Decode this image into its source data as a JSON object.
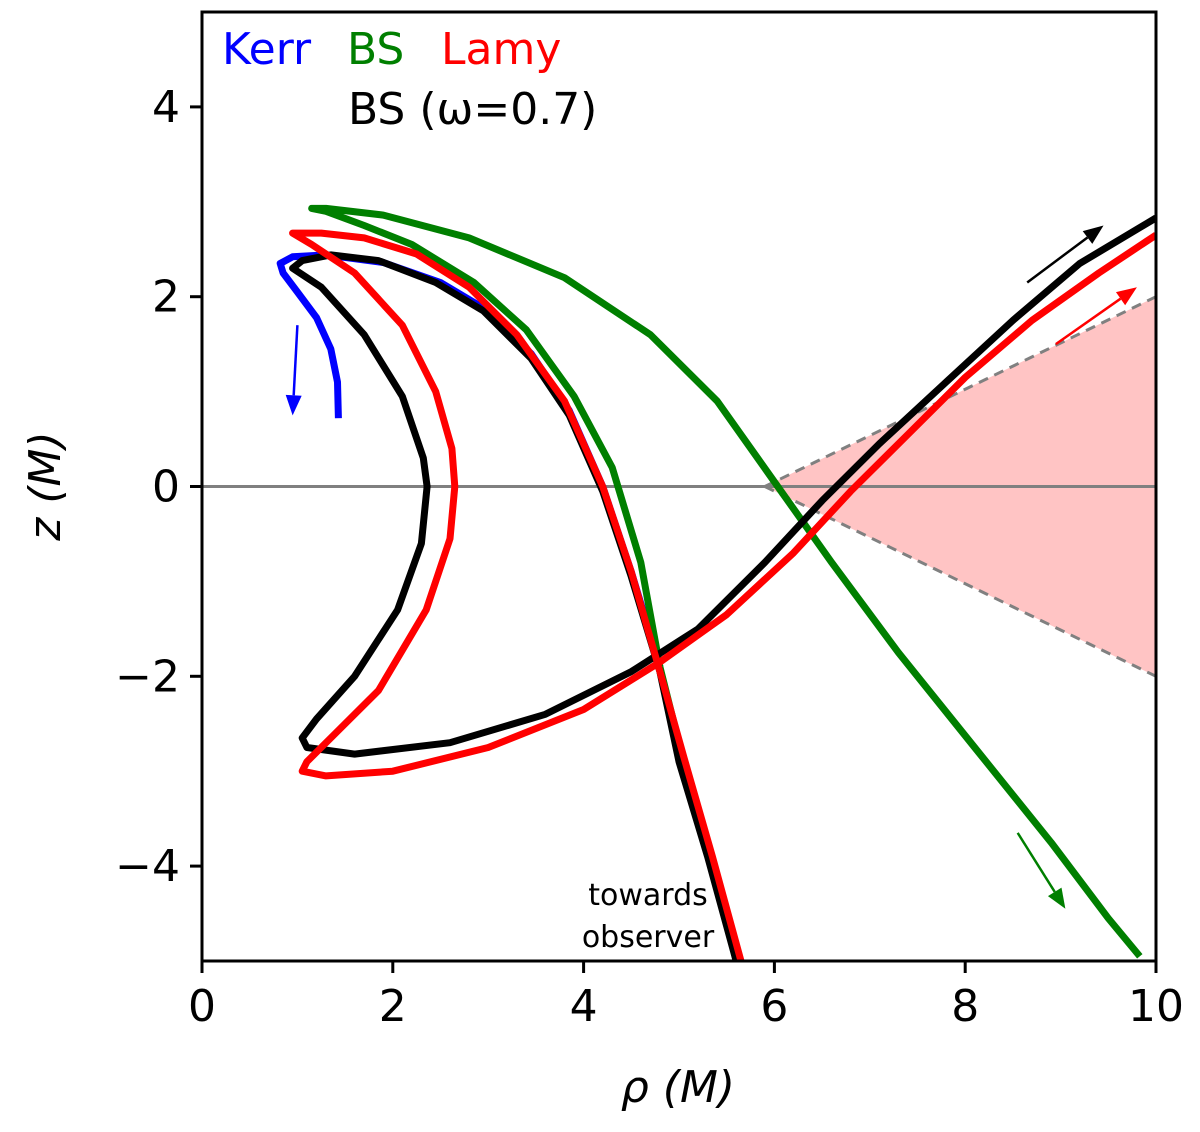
{
  "chart_data": {
    "type": "line",
    "xlabel": "ρ (M)",
    "ylabel": "z (M)",
    "xlim": [
      0,
      10
    ],
    "ylim": [
      -5,
      5
    ],
    "x_ticks": [
      0,
      2,
      4,
      6,
      8,
      10
    ],
    "y_ticks": [
      -4,
      -2,
      0,
      2,
      4
    ],
    "x_tick_labels": [
      "0",
      "2",
      "4",
      "6",
      "8",
      "10"
    ],
    "y_tick_labels": [
      "−4",
      "−2",
      "0",
      "2",
      "4"
    ],
    "legend_placement": "top-left",
    "legend": [
      {
        "label": "Kerr",
        "color": "#0000ff"
      },
      {
        "label": "BS",
        "color": "#007f00"
      },
      {
        "label": "Lamy",
        "color": "#ff0000"
      },
      {
        "label": "BS (ω=0.7)",
        "color": "#000000"
      }
    ],
    "annotation": [
      "towards",
      "observer"
    ],
    "horizontal_line": {
      "y": 0,
      "color": "#808080"
    },
    "shaded_region": {
      "color": "#ffc4c4",
      "points": [
        [
          5.9,
          0
        ],
        [
          10,
          2.0
        ],
        [
          10,
          -2.0
        ]
      ],
      "edge_color": "#808080"
    },
    "series": [
      {
        "color": "#0000ff",
        "points": [
          [
            1.43,
            0.72
          ],
          [
            1.42,
            1.1
          ],
          [
            1.35,
            1.45
          ],
          [
            1.2,
            1.78
          ],
          [
            1.0,
            2.05
          ],
          [
            0.85,
            2.25
          ],
          [
            0.82,
            2.35
          ],
          [
            0.95,
            2.42
          ],
          [
            1.3,
            2.44
          ],
          [
            1.9,
            2.36
          ],
          [
            2.5,
            2.15
          ],
          [
            3.0,
            1.85
          ],
          [
            3.45,
            1.4
          ],
          [
            3.85,
            0.8
          ],
          [
            4.2,
            0
          ],
          [
            4.5,
            -0.9
          ],
          [
            4.8,
            -1.9
          ]
        ]
      },
      {
        "color": "#007f00",
        "points": [
          [
            4.8,
            -1.9
          ],
          [
            4.6,
            -0.8
          ],
          [
            4.3,
            0.2
          ],
          [
            3.9,
            0.95
          ],
          [
            3.4,
            1.65
          ],
          [
            2.85,
            2.15
          ],
          [
            2.2,
            2.55
          ],
          [
            1.7,
            2.75
          ],
          [
            1.3,
            2.9
          ],
          [
            1.15,
            2.93
          ],
          [
            1.3,
            2.93
          ],
          [
            1.9,
            2.86
          ],
          [
            2.8,
            2.62
          ],
          [
            3.8,
            2.2
          ],
          [
            4.7,
            1.6
          ],
          [
            5.4,
            0.9
          ],
          [
            6.0,
            0.05
          ],
          [
            6.6,
            -0.8
          ],
          [
            7.3,
            -1.75
          ],
          [
            8.1,
            -2.75
          ],
          [
            8.9,
            -3.75
          ],
          [
            9.5,
            -4.55
          ],
          [
            9.83,
            -4.95
          ]
        ]
      },
      {
        "color": "#007f00",
        "points": [
          [
            4.8,
            -1.9
          ],
          [
            5.1,
            -3.1
          ],
          [
            5.4,
            -4.2
          ],
          [
            5.6,
            -5.0
          ]
        ]
      },
      {
        "color": "#000000",
        "points": [
          [
            5.6,
            -5.0
          ],
          [
            5.3,
            -3.9
          ],
          [
            5.0,
            -2.9
          ],
          [
            4.8,
            -1.95
          ],
          [
            4.5,
            -0.95
          ],
          [
            4.2,
            -0.05
          ],
          [
            3.85,
            0.75
          ],
          [
            3.45,
            1.35
          ],
          [
            2.95,
            1.85
          ],
          [
            2.45,
            2.15
          ],
          [
            1.85,
            2.38
          ],
          [
            1.35,
            2.44
          ],
          [
            1.05,
            2.38
          ],
          [
            0.95,
            2.3
          ],
          [
            1.25,
            2.1
          ],
          [
            1.7,
            1.6
          ],
          [
            2.1,
            0.95
          ],
          [
            2.32,
            0.3
          ],
          [
            2.36,
            0
          ],
          [
            2.3,
            -0.6
          ],
          [
            2.05,
            -1.3
          ],
          [
            1.6,
            -2.0
          ],
          [
            1.2,
            -2.45
          ],
          [
            1.05,
            -2.65
          ],
          [
            1.1,
            -2.75
          ],
          [
            1.6,
            -2.82
          ],
          [
            2.6,
            -2.7
          ],
          [
            3.6,
            -2.4
          ],
          [
            4.5,
            -1.95
          ],
          [
            5.2,
            -1.5
          ],
          [
            5.9,
            -0.8
          ],
          [
            6.5,
            -0.15
          ],
          [
            7.1,
            0.45
          ],
          [
            7.8,
            1.1
          ],
          [
            8.5,
            1.75
          ],
          [
            9.2,
            2.35
          ],
          [
            10.0,
            2.83
          ]
        ]
      },
      {
        "color": "#ff0000",
        "points": [
          [
            5.65,
            -5.0
          ],
          [
            5.35,
            -3.9
          ],
          [
            5.05,
            -2.85
          ],
          [
            4.8,
            -1.95
          ],
          [
            4.5,
            -0.9
          ],
          [
            4.2,
            0
          ],
          [
            3.8,
            0.9
          ],
          [
            3.3,
            1.6
          ],
          [
            2.8,
            2.1
          ],
          [
            2.25,
            2.45
          ],
          [
            1.7,
            2.62
          ],
          [
            1.25,
            2.67
          ],
          [
            0.95,
            2.67
          ],
          [
            1.15,
            2.55
          ],
          [
            1.6,
            2.25
          ],
          [
            2.1,
            1.7
          ],
          [
            2.45,
            1.0
          ],
          [
            2.62,
            0.4
          ],
          [
            2.65,
            0
          ],
          [
            2.6,
            -0.55
          ],
          [
            2.35,
            -1.3
          ],
          [
            1.85,
            -2.15
          ],
          [
            1.4,
            -2.6
          ],
          [
            1.1,
            -2.9
          ],
          [
            1.05,
            -3.0
          ],
          [
            1.3,
            -3.05
          ],
          [
            2.0,
            -3.0
          ],
          [
            3.0,
            -2.75
          ],
          [
            4.0,
            -2.35
          ],
          [
            4.8,
            -1.85
          ],
          [
            5.5,
            -1.35
          ],
          [
            6.2,
            -0.7
          ],
          [
            6.8,
            -0.05
          ],
          [
            7.4,
            0.55
          ],
          [
            8.0,
            1.15
          ],
          [
            8.7,
            1.75
          ],
          [
            9.4,
            2.25
          ],
          [
            10.0,
            2.65
          ]
        ]
      }
    ],
    "arrows": [
      {
        "color": "#0000ff",
        "from": [
          1.0,
          1.7
        ],
        "to": [
          0.95,
          0.75
        ]
      },
      {
        "color": "#000000",
        "from": [
          8.65,
          2.15
        ],
        "to": [
          9.45,
          2.75
        ]
      },
      {
        "color": "#ff0000",
        "from": [
          8.95,
          1.5
        ],
        "to": [
          9.8,
          2.1
        ]
      },
      {
        "color": "#007f00",
        "from": [
          8.55,
          -3.65
        ],
        "to": [
          9.05,
          -4.45
        ]
      }
    ]
  }
}
